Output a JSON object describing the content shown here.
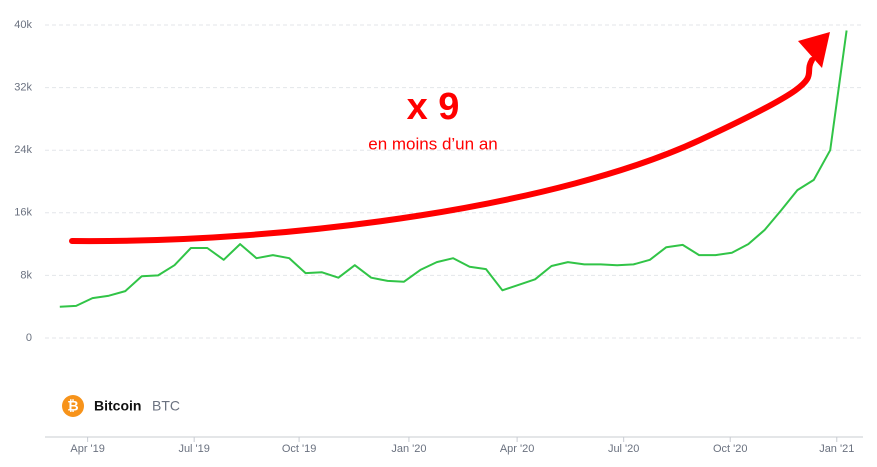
{
  "chart_data": {
    "type": "line",
    "annotation_title": "x 9",
    "annotation_subtitle": "en moins d’un an",
    "legend_icon": "₿",
    "legend_name": "Bitcoin",
    "legend_symbol": "BTC",
    "color": "#31c447",
    "values": [
      4000,
      4100,
      5100,
      5400,
      6000,
      7900,
      8000,
      9300,
      11500,
      11500,
      10000,
      12000,
      10200,
      10600,
      10200,
      8300,
      8400,
      7700,
      9300,
      7700,
      7300,
      7200,
      8700,
      9700,
      10200,
      9100,
      8800,
      6100,
      6800,
      7500,
      9200,
      9700,
      9400,
      9400,
      9300,
      9400,
      10000,
      11600,
      11900,
      10600,
      10600,
      10900,
      12000,
      13800,
      16300,
      18900,
      20200,
      24000,
      39300
    ],
    "xlim": [
      -0.9,
      49
    ],
    "xticks": [
      {
        "value": 1.7,
        "label": "Apr '19"
      },
      {
        "value": 8.2,
        "label": "Jul '19"
      },
      {
        "value": 14.6,
        "label": "Oct '19"
      },
      {
        "value": 21.3,
        "label": "Jan '20"
      },
      {
        "value": 27.9,
        "label": "Apr '20"
      },
      {
        "value": 34.4,
        "label": "Jul '20"
      },
      {
        "value": 40.9,
        "label": "Oct '20"
      },
      {
        "value": 47.4,
        "label": "Jan '21"
      }
    ],
    "ylim": [
      0,
      40000
    ],
    "yticks": [
      0,
      {
        "value": 8000,
        "label": "8k"
      },
      {
        "value": 16000,
        "label": "16k"
      },
      {
        "value": 24000,
        "label": "24k"
      },
      {
        "value": 32000,
        "label": "32k"
      },
      {
        "value": 40000,
        "label": "40k"
      }
    ],
    "grid": true
  }
}
